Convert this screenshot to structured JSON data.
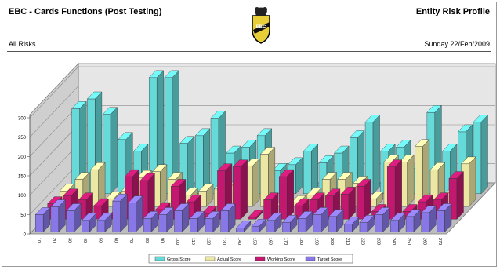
{
  "header": {
    "title": "EBC - Cards Functions (Post Testing)",
    "report": "Entity Risk Profile",
    "filter": "All Risks",
    "date": "Sunday 22/Feb/2009",
    "logo_text": "EBC"
  },
  "chart_data": {
    "type": "bar",
    "three_d": true,
    "grid": true,
    "legend_position": "bottom",
    "ylim": [
      0,
      300
    ],
    "yticks": [
      0,
      50,
      100,
      150,
      200,
      250,
      300
    ],
    "categories": [
      "10",
      "20",
      "30",
      "40",
      "50",
      "60",
      "70",
      "80",
      "90",
      "100",
      "110",
      "120",
      "130",
      "140",
      "150",
      "160",
      "170",
      "180",
      "190",
      "200",
      "210",
      "220",
      "230",
      "240",
      "250",
      "260",
      "270"
    ],
    "series": [
      {
        "name": "Gross Score",
        "color": "#66d9d9",
        "values": [
          220,
          245,
          205,
          140,
          110,
          300,
          300,
          130,
          150,
          195,
          105,
          120,
          150,
          60,
          75,
          110,
          80,
          105,
          145,
          185,
          110,
          120,
          65,
          210,
          110,
          160,
          185
        ]
      },
      {
        "name": "Actual Score",
        "color": "#ece7a2",
        "values": [
          40,
          70,
          95,
          20,
          40,
          75,
          90,
          70,
          30,
          40,
          45,
          55,
          105,
          135,
          0,
          10,
          30,
          70,
          70,
          60,
          20,
          115,
          115,
          155,
          95,
          35,
          110
        ]
      },
      {
        "name": "Working Score",
        "color": "#c2186f",
        "values": [
          40,
          60,
          50,
          35,
          10,
          110,
          100,
          25,
          85,
          45,
          15,
          125,
          135,
          5,
          50,
          110,
          35,
          50,
          60,
          65,
          85,
          20,
          135,
          20,
          45,
          50,
          105
        ]
      },
      {
        "name": "Target Score",
        "color": "#8877e6",
        "values": [
          45,
          65,
          55,
          30,
          30,
          80,
          75,
          35,
          45,
          55,
          35,
          35,
          55,
          10,
          15,
          30,
          25,
          35,
          45,
          40,
          20,
          25,
          45,
          30,
          40,
          50,
          55
        ]
      }
    ]
  }
}
